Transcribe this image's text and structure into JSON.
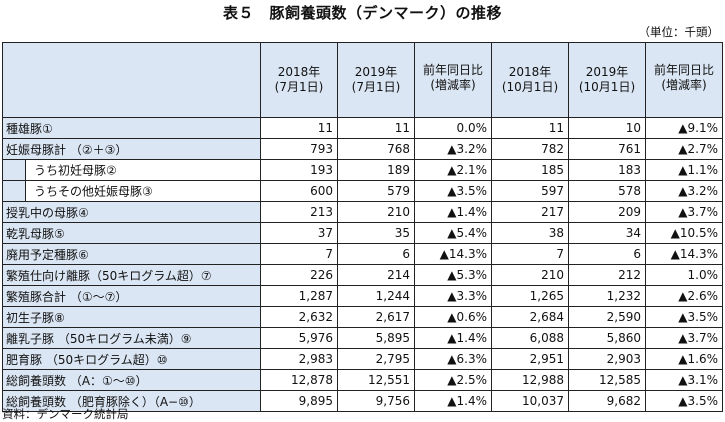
{
  "title": "表５　豚飼養頭数（デンマーク）の推移",
  "unit": "（単位：千頭）",
  "headers": [
    "",
    "2018年\n(7月1日)",
    "2019年\n(7月1日)",
    "前年同日比\n(増減率)",
    "2018年\n(10月1日)",
    "2019年\n(10月1日)",
    "前年同日比\n(増減率)"
  ],
  "rows": [
    {
      "label": "種雄豚①",
      "v": [
        "11",
        "11",
        "0.0%",
        "11",
        "10",
        "▲9.1%"
      ],
      "indent": false
    },
    {
      "label": "妊娠母豚計 （②＋③）",
      "v": [
        "793",
        "768",
        "▲3.2%",
        "782",
        "761",
        "▲2.7%"
      ],
      "indent": false
    },
    {
      "label": "うち初妊母豚②",
      "v": [
        "193",
        "189",
        "▲2.1%",
        "185",
        "183",
        "▲1.1%"
      ],
      "indent": true
    },
    {
      "label": "うちその他妊娠母豚③",
      "v": [
        "600",
        "579",
        "▲3.5%",
        "597",
        "578",
        "▲3.2%"
      ],
      "indent": true
    },
    {
      "label": "授乳中の母豚④",
      "v": [
        "213",
        "210",
        "▲1.4%",
        "217",
        "209",
        "▲3.7%"
      ],
      "indent": false
    },
    {
      "label": "乾乳母豚⑤",
      "v": [
        "37",
        "35",
        "▲5.4%",
        "38",
        "34",
        "▲10.5%"
      ],
      "indent": false
    },
    {
      "label": "廃用予定種豚⑥",
      "v": [
        "7",
        "6",
        "▲14.3%",
        "7",
        "6",
        "▲14.3%"
      ],
      "indent": false
    },
    {
      "label": "繁殖仕向け離豚（50キログラム超）⑦",
      "v": [
        "226",
        "214",
        "▲5.3%",
        "210",
        "212",
        "1.0%"
      ],
      "indent": false
    },
    {
      "label": "繁殖豚合計 （①〜⑦）",
      "v": [
        "1,287",
        "1,244",
        "▲3.3%",
        "1,265",
        "1,232",
        "▲2.6%"
      ],
      "indent": false
    },
    {
      "label": "初生子豚⑧",
      "v": [
        "2,632",
        "2,617",
        "▲0.6%",
        "2,684",
        "2,590",
        "▲3.5%"
      ],
      "indent": false
    },
    {
      "label": "離乳子豚 （50キログラム未満）⑨",
      "v": [
        "5,976",
        "5,895",
        "▲1.4%",
        "6,088",
        "5,860",
        "▲3.7%"
      ],
      "indent": false
    },
    {
      "label": "肥育豚 （50キログラム超）⑩",
      "v": [
        "2,983",
        "2,795",
        "▲6.3%",
        "2,951",
        "2,903",
        "▲1.6%"
      ],
      "indent": false
    },
    {
      "label": "総飼養頭数 （A：①〜⑩）",
      "v": [
        "12,878",
        "12,551",
        "▲2.5%",
        "12,988",
        "12,585",
        "▲3.1%"
      ],
      "indent": false
    },
    {
      "label": "総飼養頭数 （肥育豚除く）（A−⑩）",
      "v": [
        "9,895",
        "9,756",
        "▲1.4%",
        "10,037",
        "9,682",
        "▲3.5%"
      ],
      "indent": false
    }
  ],
  "source_note": "資料：デンマーク統計局"
}
